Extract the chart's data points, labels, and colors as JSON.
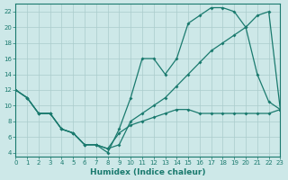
{
  "xlabel": "Humidex (Indice chaleur)",
  "bg_color": "#cde8e8",
  "grid_color": "#aacccc",
  "line_color": "#1a7a6e",
  "line1_x": [
    0,
    1,
    2,
    3,
    4,
    5,
    6,
    7,
    8,
    9,
    10,
    11,
    12,
    13,
    14,
    15,
    16,
    17,
    18,
    19,
    20,
    21,
    22,
    23
  ],
  "line1_y": [
    12,
    11,
    9,
    9,
    7,
    6.5,
    5,
    5,
    4,
    7,
    11,
    16,
    16,
    14,
    16,
    20.5,
    21.5,
    22.5,
    22.5,
    22,
    20,
    14,
    10.5,
    9.5
  ],
  "line2_x": [
    0,
    1,
    2,
    3,
    4,
    5,
    6,
    7,
    8,
    9,
    10,
    11,
    12,
    13,
    14,
    15,
    16,
    17,
    18,
    19,
    20,
    21,
    22,
    23
  ],
  "line2_y": [
    12,
    11,
    9,
    9,
    7,
    6.5,
    5,
    5,
    4.5,
    5,
    8,
    9,
    10,
    11,
    12.5,
    14,
    15.5,
    17,
    18,
    19,
    20,
    21.5,
    22,
    9.5
  ],
  "line3_x": [
    0,
    1,
    2,
    3,
    4,
    5,
    6,
    7,
    8,
    9,
    10,
    11,
    12,
    13,
    14,
    15,
    16,
    17,
    18,
    19,
    20,
    21,
    22,
    23
  ],
  "line3_y": [
    12,
    11,
    9,
    9,
    7,
    6.5,
    5,
    5,
    4.5,
    6.5,
    7.5,
    8,
    8.5,
    9,
    9.5,
    9.5,
    9,
    9,
    9,
    9,
    9,
    9,
    9,
    9.5
  ],
  "xlim": [
    0,
    23
  ],
  "ylim": [
    3.5,
    23
  ],
  "xticks": [
    0,
    1,
    2,
    3,
    4,
    5,
    6,
    7,
    8,
    9,
    10,
    11,
    12,
    13,
    14,
    15,
    16,
    17,
    18,
    19,
    20,
    21,
    22,
    23
  ],
  "yticks": [
    4,
    6,
    8,
    10,
    12,
    14,
    16,
    18,
    20,
    22
  ],
  "tick_fontsize": 5.0,
  "label_fontsize": 6.5,
  "lw": 0.9,
  "ms": 2.0
}
